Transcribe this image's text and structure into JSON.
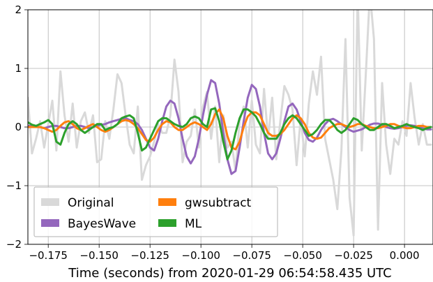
{
  "chart_data": {
    "type": "line",
    "title": "",
    "xlabel": "Time (seconds) from 2020-01-29 06:54:58.435 UTC",
    "ylabel": "",
    "xlim": [
      -0.185,
      0.014
    ],
    "ylim": [
      -2,
      2
    ],
    "x_ticks": [
      -0.175,
      -0.15,
      -0.125,
      -0.1,
      -0.075,
      -0.05,
      -0.025,
      0.0
    ],
    "x_tick_labels": [
      "−0.175",
      "−0.150",
      "−0.125",
      "−0.100",
      "−0.075",
      "−0.050",
      "−0.025",
      "0.000"
    ],
    "y_ticks": [
      -2,
      -1,
      0,
      1,
      2
    ],
    "y_tick_labels": [
      "−2",
      "−1",
      "0",
      "1",
      "2"
    ],
    "grid": true,
    "legend_position": "bottom-left",
    "series": [
      {
        "name": "Original",
        "color": "#d9d9d9",
        "x": [
          -0.185,
          -0.183,
          -0.181,
          -0.179,
          -0.177,
          -0.175,
          -0.173,
          -0.171,
          -0.169,
          -0.167,
          -0.165,
          -0.163,
          -0.161,
          -0.159,
          -0.157,
          -0.155,
          -0.153,
          -0.151,
          -0.149,
          -0.147,
          -0.145,
          -0.143,
          -0.141,
          -0.139,
          -0.137,
          -0.135,
          -0.133,
          -0.131,
          -0.129,
          -0.127,
          -0.125,
          -0.123,
          -0.121,
          -0.119,
          -0.117,
          -0.115,
          -0.113,
          -0.111,
          -0.109,
          -0.107,
          -0.105,
          -0.103,
          -0.101,
          -0.099,
          -0.097,
          -0.095,
          -0.093,
          -0.091,
          -0.089,
          -0.087,
          -0.085,
          -0.083,
          -0.081,
          -0.079,
          -0.077,
          -0.075,
          -0.073,
          -0.071,
          -0.069,
          -0.067,
          -0.065,
          -0.063,
          -0.061,
          -0.059,
          -0.057,
          -0.055,
          -0.053,
          -0.051,
          -0.049,
          -0.047,
          -0.045,
          -0.043,
          -0.041,
          -0.039,
          -0.037,
          -0.035,
          -0.033,
          -0.031,
          -0.029,
          -0.027,
          -0.025,
          -0.023,
          -0.021,
          -0.019,
          -0.017,
          -0.015,
          -0.013,
          -0.011,
          -0.009,
          -0.007,
          -0.005,
          -0.003,
          -0.001,
          0.001,
          0.003,
          0.005,
          0.007,
          0.009,
          0.011,
          0.013
        ],
        "y": [
          0.5,
          -0.45,
          -0.2,
          0.1,
          -0.35,
          0.05,
          0.45,
          -0.4,
          0.95,
          0.2,
          -0.25,
          0.4,
          -0.35,
          0.1,
          0.25,
          -0.1,
          0.2,
          -0.6,
          -0.55,
          0.1,
          -0.2,
          0.3,
          0.9,
          0.75,
          0.2,
          -0.3,
          -0.45,
          0.35,
          -0.9,
          -0.65,
          -0.5,
          -0.25,
          0.05,
          -0.1,
          -0.1,
          0.2,
          1.15,
          0.6,
          -0.6,
          -0.25,
          -0.15,
          0.3,
          -0.35,
          0.35,
          0.6,
          -0.2,
          0.35,
          -0.6,
          0.2,
          -0.35,
          -0.25,
          -0.75,
          0.1,
          0.35,
          -0.35,
          0.45,
          -0.3,
          -0.45,
          0.65,
          -0.2,
          0.5,
          -0.55,
          0.1,
          0.7,
          0.55,
          0.3,
          -0.65,
          0.15,
          -0.5,
          0.4,
          0.95,
          0.55,
          1.2,
          -0.2,
          -0.55,
          -0.9,
          -1.4,
          -0.4,
          1.5,
          -1.2,
          -1.85,
          2.3,
          -0.4,
          0.9,
          2.3,
          1.5,
          -1.75,
          0.75,
          -0.3,
          -0.8,
          -0.2,
          -0.3,
          0.1,
          -0.15,
          0.75,
          0.15,
          -0.3,
          0.05,
          -0.3,
          -0.3
        ]
      },
      {
        "name": "BayesWave",
        "color": "#9467bd",
        "x": [
          -0.185,
          -0.183,
          -0.181,
          -0.179,
          -0.177,
          -0.175,
          -0.173,
          -0.171,
          -0.169,
          -0.167,
          -0.165,
          -0.163,
          -0.161,
          -0.159,
          -0.157,
          -0.155,
          -0.153,
          -0.151,
          -0.149,
          -0.147,
          -0.145,
          -0.143,
          -0.141,
          -0.139,
          -0.137,
          -0.135,
          -0.133,
          -0.131,
          -0.129,
          -0.127,
          -0.125,
          -0.123,
          -0.121,
          -0.119,
          -0.117,
          -0.115,
          -0.113,
          -0.111,
          -0.109,
          -0.107,
          -0.105,
          -0.103,
          -0.101,
          -0.099,
          -0.097,
          -0.095,
          -0.093,
          -0.091,
          -0.089,
          -0.087,
          -0.085,
          -0.083,
          -0.081,
          -0.079,
          -0.077,
          -0.075,
          -0.073,
          -0.071,
          -0.069,
          -0.067,
          -0.065,
          -0.063,
          -0.061,
          -0.059,
          -0.057,
          -0.055,
          -0.053,
          -0.051,
          -0.049,
          -0.047,
          -0.045,
          -0.043,
          -0.041,
          -0.039,
          -0.037,
          -0.035,
          -0.033,
          -0.031,
          -0.029,
          -0.027,
          -0.025,
          -0.023,
          -0.021,
          -0.019,
          -0.017,
          -0.015,
          -0.013,
          -0.011,
          -0.009,
          -0.007,
          -0.005,
          -0.003,
          -0.001,
          0.001,
          0.003,
          0.005,
          0.007,
          0.009,
          0.011,
          0.013
        ],
        "y": [
          0.02,
          0.02,
          0.0,
          0.0,
          -0.02,
          0.0,
          0.02,
          0.02,
          0.0,
          -0.02,
          -0.02,
          0.0,
          0.02,
          0.02,
          0.0,
          -0.02,
          0.0,
          0.02,
          0.04,
          0.05,
          0.08,
          0.1,
          0.12,
          0.14,
          0.15,
          0.12,
          0.1,
          0.05,
          -0.05,
          -0.2,
          -0.35,
          -0.4,
          -0.2,
          0.1,
          0.35,
          0.45,
          0.4,
          0.15,
          -0.2,
          -0.5,
          -0.62,
          -0.5,
          -0.2,
          0.2,
          0.55,
          0.8,
          0.75,
          0.4,
          -0.1,
          -0.55,
          -0.8,
          -0.75,
          -0.35,
          0.1,
          0.5,
          0.72,
          0.65,
          0.35,
          -0.1,
          -0.45,
          -0.55,
          -0.45,
          -0.2,
          0.1,
          0.35,
          0.4,
          0.3,
          0.1,
          -0.1,
          -0.22,
          -0.25,
          -0.18,
          -0.05,
          0.05,
          0.12,
          0.14,
          0.1,
          0.05,
          0.0,
          -0.05,
          -0.08,
          -0.06,
          -0.04,
          0.0,
          0.04,
          0.06,
          0.06,
          0.04,
          0.0,
          -0.02,
          -0.03,
          -0.02,
          0.0,
          0.02,
          0.03,
          0.02,
          0.0,
          -0.02,
          -0.04,
          -0.04
        ]
      },
      {
        "name": "gwsubtract",
        "color": "#ff7f0e",
        "x": [
          -0.185,
          -0.183,
          -0.181,
          -0.179,
          -0.177,
          -0.175,
          -0.173,
          -0.171,
          -0.169,
          -0.167,
          -0.165,
          -0.163,
          -0.161,
          -0.159,
          -0.157,
          -0.155,
          -0.153,
          -0.151,
          -0.149,
          -0.147,
          -0.145,
          -0.143,
          -0.141,
          -0.139,
          -0.137,
          -0.135,
          -0.133,
          -0.131,
          -0.129,
          -0.127,
          -0.125,
          -0.123,
          -0.121,
          -0.119,
          -0.117,
          -0.115,
          -0.113,
          -0.111,
          -0.109,
          -0.107,
          -0.105,
          -0.103,
          -0.101,
          -0.099,
          -0.097,
          -0.095,
          -0.093,
          -0.091,
          -0.089,
          -0.087,
          -0.085,
          -0.083,
          -0.081,
          -0.079,
          -0.077,
          -0.075,
          -0.073,
          -0.071,
          -0.069,
          -0.067,
          -0.065,
          -0.063,
          -0.061,
          -0.059,
          -0.057,
          -0.055,
          -0.053,
          -0.051,
          -0.049,
          -0.047,
          -0.045,
          -0.043,
          -0.041,
          -0.039,
          -0.037,
          -0.035,
          -0.033,
          -0.031,
          -0.029,
          -0.027,
          -0.025,
          -0.023,
          -0.021,
          -0.019,
          -0.017,
          -0.015,
          -0.013,
          -0.011,
          -0.009,
          -0.007,
          -0.005,
          -0.003,
          -0.001,
          0.001,
          0.003,
          0.005,
          0.007,
          0.009,
          0.011,
          0.013
        ],
        "y": [
          0.0,
          0.0,
          0.0,
          0.0,
          -0.02,
          -0.05,
          -0.08,
          -0.05,
          0.02,
          0.08,
          0.1,
          0.05,
          -0.02,
          -0.05,
          -0.02,
          0.02,
          0.05,
          0.0,
          -0.05,
          -0.08,
          -0.05,
          0.0,
          0.05,
          0.1,
          0.12,
          0.1,
          0.05,
          -0.02,
          -0.12,
          -0.22,
          -0.25,
          -0.18,
          -0.05,
          0.05,
          0.1,
          0.08,
          0.0,
          -0.05,
          -0.05,
          0.0,
          0.05,
          0.08,
          0.05,
          0.0,
          -0.05,
          0.05,
          0.22,
          0.3,
          0.15,
          -0.15,
          -0.35,
          -0.38,
          -0.25,
          0.0,
          0.18,
          0.25,
          0.25,
          0.2,
          0.05,
          -0.1,
          -0.15,
          -0.15,
          -0.12,
          -0.05,
          0.05,
          0.15,
          0.2,
          0.15,
          0.05,
          -0.1,
          -0.18,
          -0.2,
          -0.18,
          -0.1,
          -0.02,
          0.02,
          0.05,
          0.05,
          0.02,
          0.0,
          0.02,
          0.05,
          0.05,
          0.02,
          0.0,
          -0.02,
          -0.02,
          0.0,
          0.02,
          0.05,
          0.05,
          0.02,
          0.0,
          -0.02,
          -0.02,
          0.0,
          0.02,
          0.02,
          0.0,
          0.0
        ]
      },
      {
        "name": "ML",
        "color": "#2ca02c",
        "x": [
          -0.185,
          -0.183,
          -0.181,
          -0.179,
          -0.177,
          -0.175,
          -0.173,
          -0.171,
          -0.169,
          -0.167,
          -0.165,
          -0.163,
          -0.161,
          -0.159,
          -0.157,
          -0.155,
          -0.153,
          -0.151,
          -0.149,
          -0.147,
          -0.145,
          -0.143,
          -0.141,
          -0.139,
          -0.137,
          -0.135,
          -0.133,
          -0.131,
          -0.129,
          -0.127,
          -0.125,
          -0.123,
          -0.121,
          -0.119,
          -0.117,
          -0.115,
          -0.113,
          -0.111,
          -0.109,
          -0.107,
          -0.105,
          -0.103,
          -0.101,
          -0.099,
          -0.097,
          -0.095,
          -0.093,
          -0.091,
          -0.089,
          -0.087,
          -0.085,
          -0.083,
          -0.081,
          -0.079,
          -0.077,
          -0.075,
          -0.073,
          -0.071,
          -0.069,
          -0.067,
          -0.065,
          -0.063,
          -0.061,
          -0.059,
          -0.057,
          -0.055,
          -0.053,
          -0.051,
          -0.049,
          -0.047,
          -0.045,
          -0.043,
          -0.041,
          -0.039,
          -0.037,
          -0.035,
          -0.033,
          -0.031,
          -0.029,
          -0.027,
          -0.025,
          -0.023,
          -0.021,
          -0.019,
          -0.017,
          -0.015,
          -0.013,
          -0.011,
          -0.009,
          -0.007,
          -0.005,
          -0.003,
          -0.001,
          0.001,
          0.003,
          0.005,
          0.007,
          0.009,
          0.011,
          0.013
        ],
        "y": [
          0.08,
          0.04,
          0.02,
          0.05,
          0.08,
          0.12,
          0.05,
          -0.25,
          -0.3,
          -0.1,
          0.05,
          0.1,
          0.05,
          -0.05,
          -0.1,
          -0.05,
          0.0,
          0.05,
          0.05,
          -0.05,
          -0.02,
          0.0,
          0.05,
          0.15,
          0.18,
          0.2,
          0.15,
          -0.1,
          -0.4,
          -0.35,
          -0.2,
          -0.05,
          0.1,
          0.15,
          0.15,
          0.1,
          0.05,
          0.02,
          0.0,
          0.05,
          0.15,
          0.18,
          0.15,
          0.05,
          0.0,
          0.3,
          0.32,
          0.1,
          -0.25,
          -0.55,
          -0.4,
          -0.1,
          0.15,
          0.3,
          0.3,
          0.25,
          0.18,
          0.05,
          -0.1,
          -0.2,
          -0.2,
          -0.2,
          -0.1,
          0.05,
          0.15,
          0.2,
          0.15,
          0.05,
          -0.05,
          -0.15,
          -0.12,
          -0.05,
          0.05,
          0.12,
          0.12,
          0.05,
          -0.05,
          -0.1,
          -0.05,
          0.05,
          0.15,
          0.12,
          0.05,
          0.0,
          -0.05,
          -0.05,
          0.0,
          0.05,
          0.05,
          0.02,
          -0.02,
          0.0,
          0.02,
          0.05,
          0.02,
          0.0,
          -0.02,
          -0.05,
          -0.02,
          0.0
        ]
      }
    ]
  }
}
